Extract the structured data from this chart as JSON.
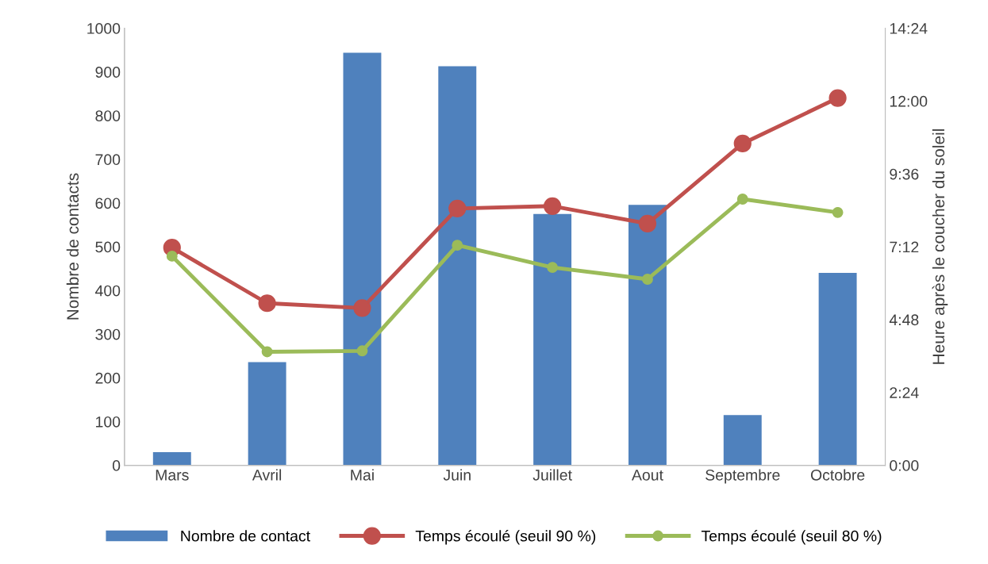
{
  "chart_data": {
    "type": "bar",
    "categories": [
      "Mars",
      "Avril",
      "Mai",
      "Juin",
      "Juillet",
      "Aout",
      "Septembre",
      "Octobre"
    ],
    "ylabel": "Nombre de contacts",
    "y2label": "Heure après le coucher du soleil",
    "ylim": [
      0,
      1000
    ],
    "yticks": [
      0,
      100,
      200,
      300,
      400,
      500,
      600,
      700,
      800,
      900,
      1000
    ],
    "y2lim": [
      0,
      14.4
    ],
    "y2ticks": [
      {
        "value": 0,
        "label": "0:00"
      },
      {
        "value": 2.4,
        "label": "2:24"
      },
      {
        "value": 4.8,
        "label": "4:48"
      },
      {
        "value": 7.2,
        "label": "7:12"
      },
      {
        "value": 9.6,
        "label": "9:36"
      },
      {
        "value": 12,
        "label": "12:00"
      },
      {
        "value": 14.4,
        "label": "14:24"
      }
    ],
    "grid": false,
    "legend": "bottom",
    "marker": "circle",
    "series": [
      {
        "name": "Nombre de contact",
        "color": "#4f81bd",
        "values": [
          30,
          236,
          944,
          913,
          575,
          596,
          115,
          440
        ]
      },
      {
        "name": "Temps écoulé (seuil 90 %)",
        "type": "line",
        "axis": "y2",
        "color": "#c0504d",
        "values": [
          7.17,
          5.34,
          5.18,
          8.46,
          8.54,
          7.96,
          10.6,
          12.1
        ]
      },
      {
        "name": "Temps écoulé (seuil 80 %)",
        "type": "line",
        "axis": "y2",
        "color": "#9bbb59",
        "values": [
          6.89,
          3.74,
          3.77,
          7.25,
          6.52,
          6.13,
          8.77,
          8.33
        ]
      }
    ]
  }
}
